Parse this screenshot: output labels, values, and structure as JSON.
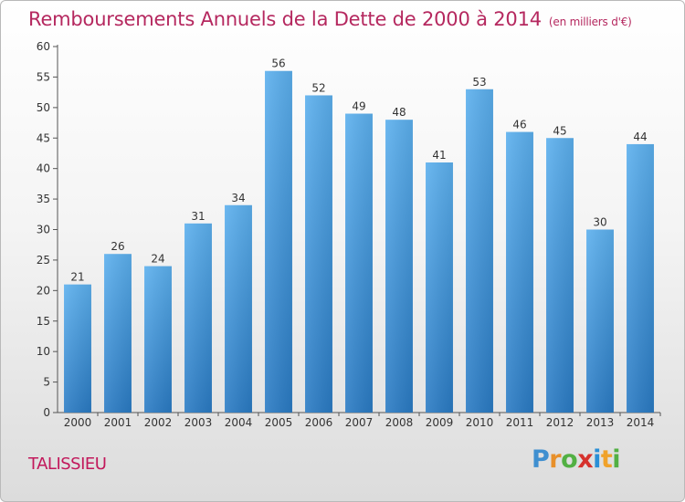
{
  "chart_data": {
    "type": "bar",
    "title": "Remboursements Annuels de la Dette de 2000 à 2014",
    "subtitle": "(en milliers d'€)",
    "categories": [
      "2000",
      "2001",
      "2002",
      "2003",
      "2004",
      "2005",
      "2006",
      "2007",
      "2008",
      "2009",
      "2010",
      "2011",
      "2012",
      "2013",
      "2014"
    ],
    "values": [
      21,
      26,
      24,
      31,
      34,
      56,
      52,
      49,
      48,
      41,
      53,
      46,
      45,
      30,
      44
    ],
    "xlabel": "",
    "ylabel": "",
    "ylim": [
      0,
      60
    ],
    "ytick_step": 5,
    "grid": false,
    "bar_color": "#4a9ee0"
  },
  "commune": "TALISSIEU",
  "logo": {
    "letters": [
      "P",
      "r",
      "o",
      "x",
      "i",
      "t",
      "i"
    ],
    "colors": [
      "#3f8fd0",
      "#e8902a",
      "#52b043",
      "#d6322d",
      "#2a8fd6",
      "#f0a22a",
      "#52b043"
    ]
  }
}
